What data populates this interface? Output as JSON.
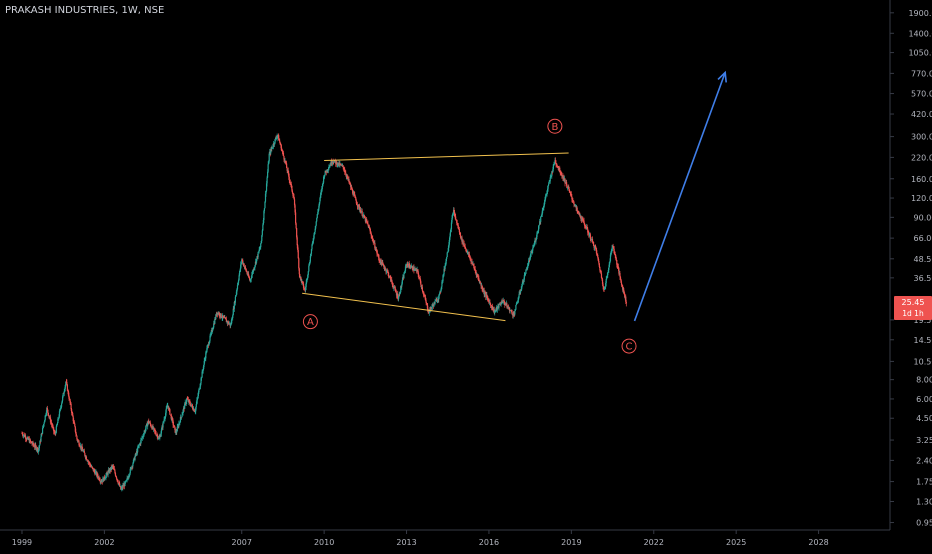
{
  "header": {
    "symbol_title": "PRAKASH INDUSTRIES, 1W, NSE"
  },
  "colors": {
    "background": "#000000",
    "up": "#26a69a",
    "down": "#ef5350",
    "trendline": "#f2c14e",
    "projection_arrow": "#3f7ee8",
    "wave_label": "#ef5350",
    "axis_text": "#b2b5be",
    "axis_line": "#363a45",
    "price_tag_bg": "#ef5350",
    "price_tag_text": "#ffffff"
  },
  "price_tag": {
    "price": "25.45",
    "countdown": "1d 1h"
  },
  "wave_labels": [
    "A",
    "B",
    "C"
  ],
  "chart_data": {
    "type": "candlestick",
    "title": "PRAKASH INDUSTRIES, 1W, NSE",
    "y_scale": "log",
    "ylim": [
      0.85,
      2300
    ],
    "xlim": [
      1998.2,
      2030.6
    ],
    "x_ticks": [
      "1999",
      "2002",
      "2007",
      "2010",
      "2013",
      "2016",
      "2019",
      "2022",
      "2025",
      "2028"
    ],
    "y_ticks": [
      "1900.00",
      "1400.00",
      "1050.00",
      "770.00",
      "570.00",
      "420.00",
      "300.00",
      "220.00",
      "160.00",
      "120.00",
      "90.00",
      "66.00",
      "48.50",
      "36.50",
      "25.45",
      "19.50",
      "14.50",
      "10.50",
      "8.00",
      "6.00",
      "4.50",
      "3.25",
      "2.40",
      "1.75",
      "1.30",
      "0.95"
    ],
    "series": [
      {
        "name": "PRAKASH INDUSTRIES",
        "price_path": [
          [
            1999.0,
            3.6
          ],
          [
            1999.6,
            2.8
          ],
          [
            1999.9,
            5.2
          ],
          [
            2000.2,
            3.5
          ],
          [
            2000.6,
            7.8
          ],
          [
            2001.0,
            3.3
          ],
          [
            2001.5,
            2.2
          ],
          [
            2001.9,
            1.75
          ],
          [
            2002.3,
            2.2
          ],
          [
            2002.6,
            1.55
          ],
          [
            2002.8,
            1.75
          ],
          [
            2003.2,
            2.8
          ],
          [
            2003.6,
            4.3
          ],
          [
            2004.0,
            3.3
          ],
          [
            2004.3,
            5.5
          ],
          [
            2004.6,
            3.6
          ],
          [
            2005.0,
            6.0
          ],
          [
            2005.3,
            5.0
          ],
          [
            2005.7,
            12.0
          ],
          [
            2006.1,
            22.0
          ],
          [
            2006.6,
            18.0
          ],
          [
            2007.0,
            48.0
          ],
          [
            2007.3,
            35.0
          ],
          [
            2007.7,
            60.0
          ],
          [
            2008.0,
            230.0
          ],
          [
            2008.3,
            310.0
          ],
          [
            2008.6,
            200.0
          ],
          [
            2008.9,
            120.0
          ],
          [
            2009.1,
            38.0
          ],
          [
            2009.3,
            30.0
          ],
          [
            2009.6,
            65.0
          ],
          [
            2010.0,
            170.0
          ],
          [
            2010.3,
            210.0
          ],
          [
            2010.7,
            190.0
          ],
          [
            2011.2,
            110.0
          ],
          [
            2011.6,
            80.0
          ],
          [
            2012.0,
            48.0
          ],
          [
            2012.3,
            40.0
          ],
          [
            2012.7,
            27.0
          ],
          [
            2013.0,
            45.0
          ],
          [
            2013.4,
            40.0
          ],
          [
            2013.8,
            22.0
          ],
          [
            2014.2,
            28.0
          ],
          [
            2014.5,
            55.0
          ],
          [
            2014.7,
            100.0
          ],
          [
            2015.0,
            65.0
          ],
          [
            2015.4,
            45.0
          ],
          [
            2015.8,
            30.0
          ],
          [
            2016.2,
            22.0
          ],
          [
            2016.5,
            26.0
          ],
          [
            2016.9,
            21.0
          ],
          [
            2017.3,
            38.0
          ],
          [
            2017.7,
            65.0
          ],
          [
            2018.1,
            130.0
          ],
          [
            2018.4,
            210.0
          ],
          [
            2018.8,
            150.0
          ],
          [
            2019.2,
            100.0
          ],
          [
            2019.5,
            80.0
          ],
          [
            2019.9,
            55.0
          ],
          [
            2020.2,
            30.0
          ],
          [
            2020.5,
            60.0
          ],
          [
            2020.8,
            35.0
          ],
          [
            2021.0,
            25.45
          ]
        ]
      }
    ],
    "annotations": {
      "upper_trendline": [
        [
          2010.0,
          210.0
        ],
        [
          2018.9,
          235.0
        ]
      ],
      "lower_trendline": [
        [
          2009.2,
          29.0
        ],
        [
          2016.6,
          19.3
        ]
      ],
      "projection": [
        [
          2021.3,
          19.2
        ],
        [
          2024.6,
          780.0
        ]
      ],
      "waves": [
        {
          "label": "A",
          "x": 2009.5,
          "y": 19.0
        },
        {
          "label": "B",
          "x": 2018.4,
          "y": 350.0
        },
        {
          "label": "C",
          "x": 2021.1,
          "y": 13.2
        }
      ]
    }
  }
}
